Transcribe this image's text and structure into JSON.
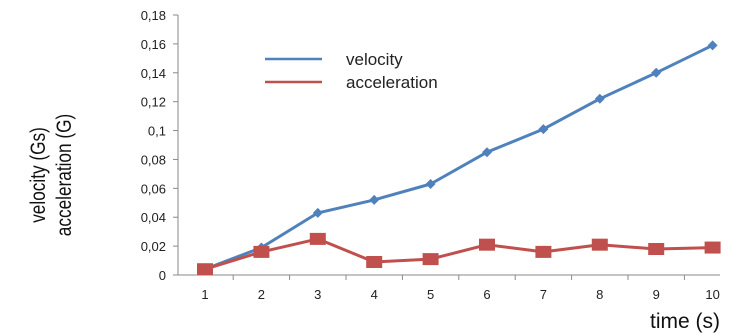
{
  "chart_data": {
    "type": "line",
    "title": "",
    "xlabel": "time (s)",
    "ylabel_lines": [
      "velocity (Gs)",
      "acceleration (G)"
    ],
    "x": [
      1,
      2,
      3,
      4,
      5,
      6,
      7,
      8,
      9,
      10
    ],
    "ylim": [
      0,
      0.18
    ],
    "y_ticks": [
      "0",
      "0,02",
      "0,04",
      "0,06",
      "0,08",
      "0,1",
      "0,12",
      "0,14",
      "0,16",
      "0,18"
    ],
    "x_ticks": [
      "1",
      "2",
      "3",
      "4",
      "5",
      "6",
      "7",
      "8",
      "9",
      "10"
    ],
    "grid": false,
    "legend_position": "top-left",
    "series": [
      {
        "name": "velocity",
        "color": "#4f81bd",
        "marker": "diamond",
        "values": [
          0.004,
          0.019,
          0.043,
          0.052,
          0.063,
          0.085,
          0.101,
          0.122,
          0.14,
          0.159
        ]
      },
      {
        "name": "acceleration",
        "color": "#c0504d",
        "marker": "square",
        "values": [
          0.004,
          0.016,
          0.025,
          0.009,
          0.011,
          0.021,
          0.016,
          0.021,
          0.018,
          0.019
        ]
      }
    ]
  }
}
